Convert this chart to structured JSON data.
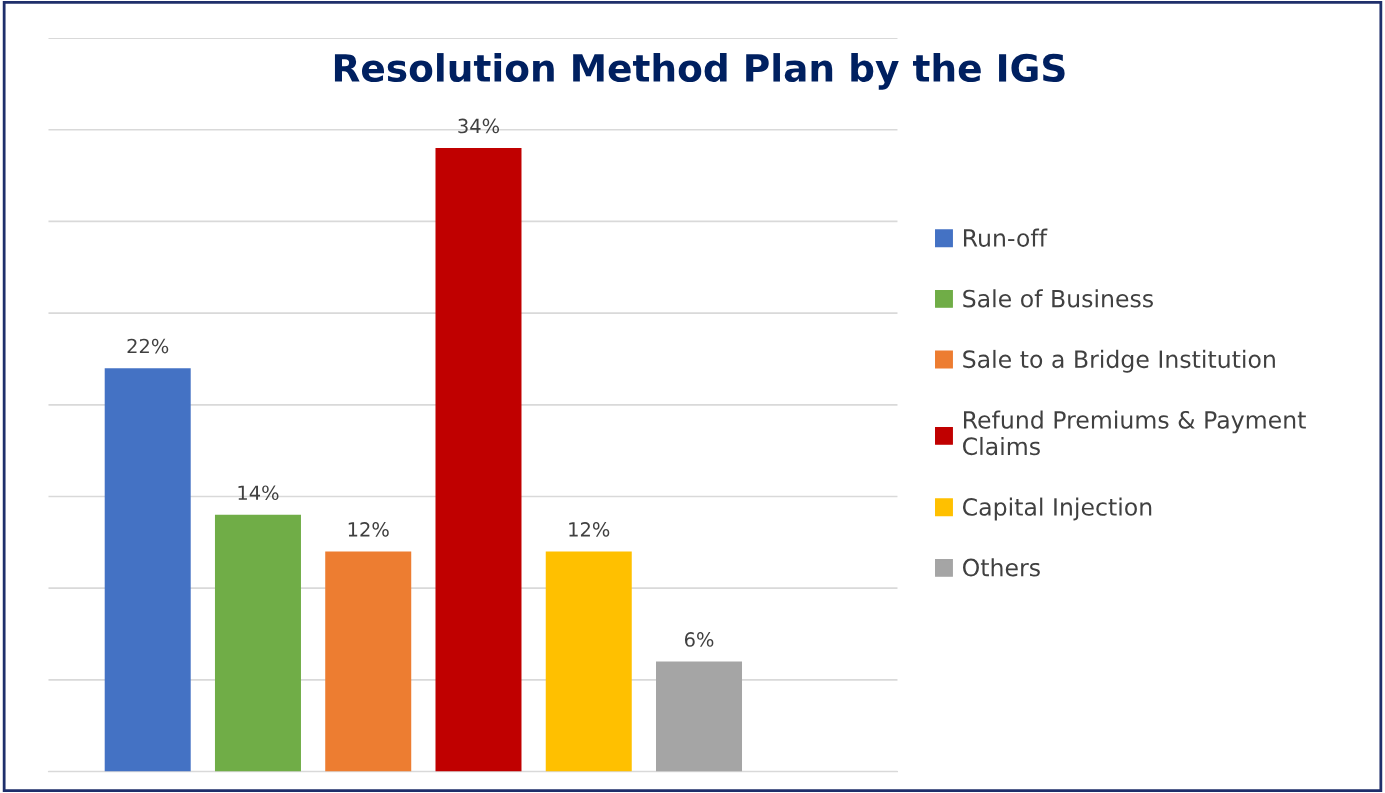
{
  "chart_data": {
    "type": "bar",
    "title": "Resolution Method Plan by the IGS",
    "stacked": true,
    "categories": [
      null,
      null,
      null,
      null,
      null,
      null
    ],
    "series": [
      {
        "name": "Run-off",
        "color": "#4472c4",
        "values": [
          22,
          null,
          null,
          null,
          null,
          null
        ],
        "value_labels": [
          "22%",
          null,
          null,
          null,
          null,
          null
        ]
      },
      {
        "name": "Sale of Business",
        "color": "#70ad47",
        "values": [
          null,
          14,
          null,
          null,
          null,
          null
        ],
        "value_labels": [
          null,
          "14%",
          null,
          null,
          null,
          null
        ]
      },
      {
        "name": "Sale to a Bridge Institution",
        "color": "#ed7d31",
        "values": [
          null,
          null,
          12,
          null,
          null,
          null
        ],
        "value_labels": [
          null,
          null,
          "12%",
          null,
          null,
          null
        ]
      },
      {
        "name": "Refund Premiums & Payment Claims",
        "color": "#c00000",
        "values": [
          null,
          null,
          null,
          34,
          null,
          null
        ],
        "value_labels": [
          null,
          null,
          null,
          "34%",
          null,
          null
        ]
      },
      {
        "name": "Capital Injection",
        "color": "#ffc000",
        "values": [
          null,
          null,
          null,
          null,
          12,
          null
        ],
        "value_labels": [
          null,
          null,
          null,
          null,
          "12%",
          null
        ]
      },
      {
        "name": "Others",
        "color": "#a5a5a5",
        "values": [
          null,
          null,
          null,
          null,
          null,
          6
        ],
        "value_labels": [
          null,
          null,
          null,
          null,
          null,
          "6%"
        ]
      }
    ],
    "ylim": [
      0,
      40
    ],
    "yticks": [
      {
        "value": 0,
        "label": null
      },
      {
        "value": 5,
        "label": null
      },
      {
        "value": 10,
        "label": null
      },
      {
        "value": 15,
        "label": null
      },
      {
        "value": 20,
        "label": null
      },
      {
        "value": 25,
        "label": null
      },
      {
        "value": 30,
        "label": null
      },
      {
        "value": 35,
        "label": null
      },
      {
        "value": 40,
        "label": null
      }
    ],
    "grid": "y",
    "legend": "right"
  }
}
